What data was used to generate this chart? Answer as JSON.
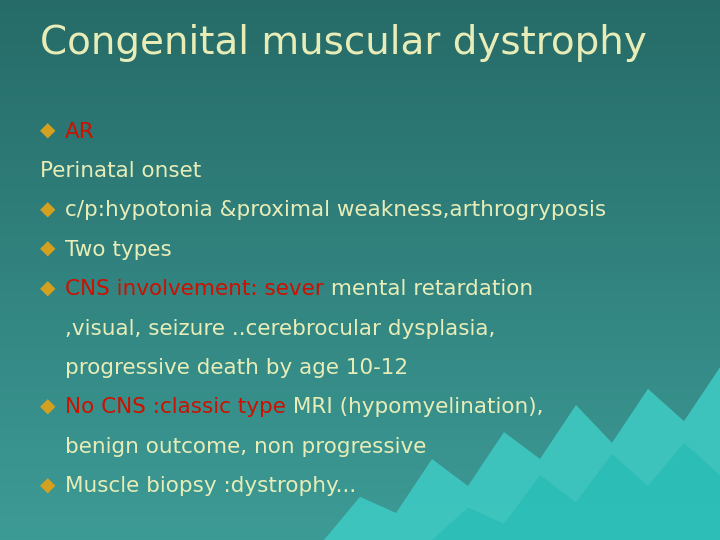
{
  "title": "Congenital muscular dystrophy",
  "title_color": "#E8EDB8",
  "bg_color_top": "#266B68",
  "bg_color_bottom": "#3D9B96",
  "text_color": "#E8EDB8",
  "text_color_red": "#CC1100",
  "bullet_color": "#D4A020",
  "title_fontsize": 28,
  "body_fontsize": 15.5,
  "lines": [
    {
      "bullet": true,
      "indent": false,
      "parts": [
        {
          "text": "AR",
          "color": "#CC1100"
        }
      ]
    },
    {
      "bullet": false,
      "indent": false,
      "parts": [
        {
          "text": "Perinatal onset",
          "color": "#E8EDB8"
        }
      ]
    },
    {
      "bullet": true,
      "indent": false,
      "parts": [
        {
          "text": "c/p:hypotonia &proximal weakness,arthrogryposis",
          "color": "#E8EDB8"
        }
      ]
    },
    {
      "bullet": true,
      "indent": false,
      "parts": [
        {
          "text": "Two types",
          "color": "#E8EDB8"
        }
      ]
    },
    {
      "bullet": true,
      "indent": false,
      "parts": [
        {
          "text": "CNS involvement: sever",
          "color": "#CC1100"
        },
        {
          "text": " mental retardation",
          "color": "#E8EDB8"
        }
      ]
    },
    {
      "bullet": false,
      "indent": true,
      "parts": [
        {
          "text": ",visual, seizure ..cerebrocular dysplasia,",
          "color": "#E8EDB8"
        }
      ]
    },
    {
      "bullet": false,
      "indent": true,
      "parts": [
        {
          "text": "progressive death by age 10-12",
          "color": "#E8EDB8"
        }
      ]
    },
    {
      "bullet": true,
      "indent": false,
      "parts": [
        {
          "text": "No CNS :classic type",
          "color": "#CC1100"
        },
        {
          "text": " MRI (hypomyelination),",
          "color": "#E8EDB8"
        }
      ]
    },
    {
      "bullet": false,
      "indent": true,
      "parts": [
        {
          "text": "benign outcome, non progressive",
          "color": "#E8EDB8"
        }
      ]
    },
    {
      "bullet": true,
      "indent": false,
      "parts": [
        {
          "text": "Muscle biopsy :dystrophy...",
          "color": "#E8EDB8"
        }
      ]
    }
  ]
}
